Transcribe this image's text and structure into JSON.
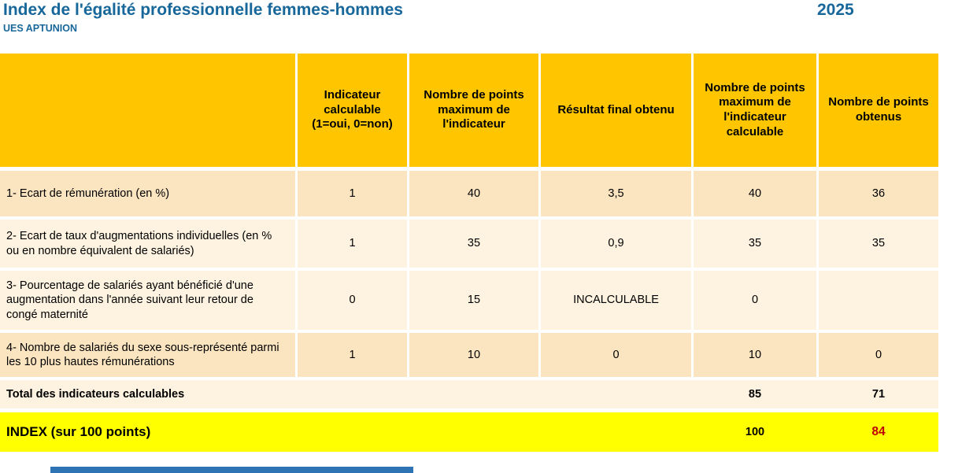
{
  "header": {
    "title": "Index de l'égalité professionnelle femmes-hommes",
    "subtitle": "UES APTUNION",
    "year": "2025"
  },
  "table": {
    "columns": [
      "",
      "Indicateur calculable (1=oui, 0=non)",
      "Nombre de points maximum de l'indicateur",
      "Résultat final obtenu",
      "Nombre de points maximum de l'indicateur calculable",
      "Nombre de points obtenus"
    ],
    "rows": [
      {
        "label": "1- Ecart de rémunération (en %)",
        "calculable": "1",
        "max_points": "40",
        "result": "3,5",
        "max_calculable": "40",
        "obtained": "36"
      },
      {
        "label": "2- Ecart de taux d'augmentations individuelles (en % ou en nombre équivalent de salariés)",
        "calculable": "1",
        "max_points": "35",
        "result": "0,9",
        "max_calculable": "35",
        "obtained": "35"
      },
      {
        "label": "3- Pourcentage de salariés ayant bénéficié d'une augmentation dans l'année suivant leur retour de congé maternité",
        "calculable": "0",
        "max_points": "15",
        "result": "INCALCULABLE",
        "max_calculable": "0",
        "obtained": ""
      },
      {
        "label": "4- Nombre de salariés du sexe sous-représenté parmi les 10 plus hautes rémunérations",
        "calculable": "1",
        "max_points": "10",
        "result": "0",
        "max_calculable": "10",
        "obtained": "0"
      }
    ],
    "total": {
      "label": "Total des indicateurs calculables",
      "max_calculable": "85",
      "obtained": "71"
    },
    "index": {
      "label": "INDEX (sur 100 points)",
      "max": "100",
      "score": "84"
    }
  },
  "colors": {
    "title_blue": "#17679A",
    "header_gold": "#FFC600",
    "row_dark": "#FBE5C1",
    "row_light": "#FDF3E0",
    "index_yellow": "#FFFF00",
    "score_red": "#C00000",
    "bottom_strip_blue": "#2E74B5"
  }
}
